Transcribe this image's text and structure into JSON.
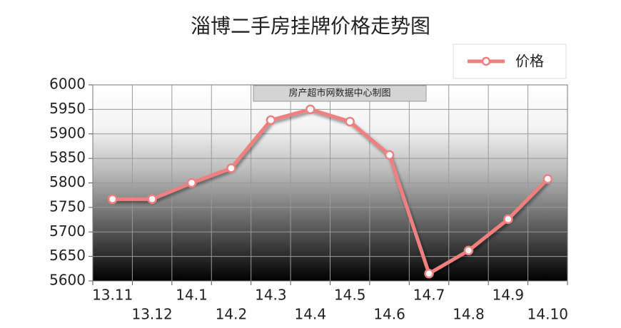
{
  "chart_data": {
    "type": "line",
    "title": "淄博二手房挂牌价格走势图",
    "annotation": "房产超市网数据中心制图",
    "categories": [
      "13.11",
      "13.12",
      "14.1",
      "14.2",
      "14.3",
      "14.4",
      "14.5",
      "14.6",
      "14.7",
      "14.8",
      "14.9",
      "14.10"
    ],
    "series": [
      {
        "name": "价格",
        "color": "#f08080",
        "values": [
          5767,
          5767,
          5800,
          5830,
          5928,
          5950,
          5925,
          5857,
          5615,
          5662,
          5726,
          5808
        ]
      }
    ],
    "ylim": [
      5600,
      6000
    ],
    "yticks": [
      5600,
      5650,
      5700,
      5750,
      5800,
      5850,
      5900,
      5950,
      6000
    ],
    "grid": true,
    "legend": "top-right"
  }
}
